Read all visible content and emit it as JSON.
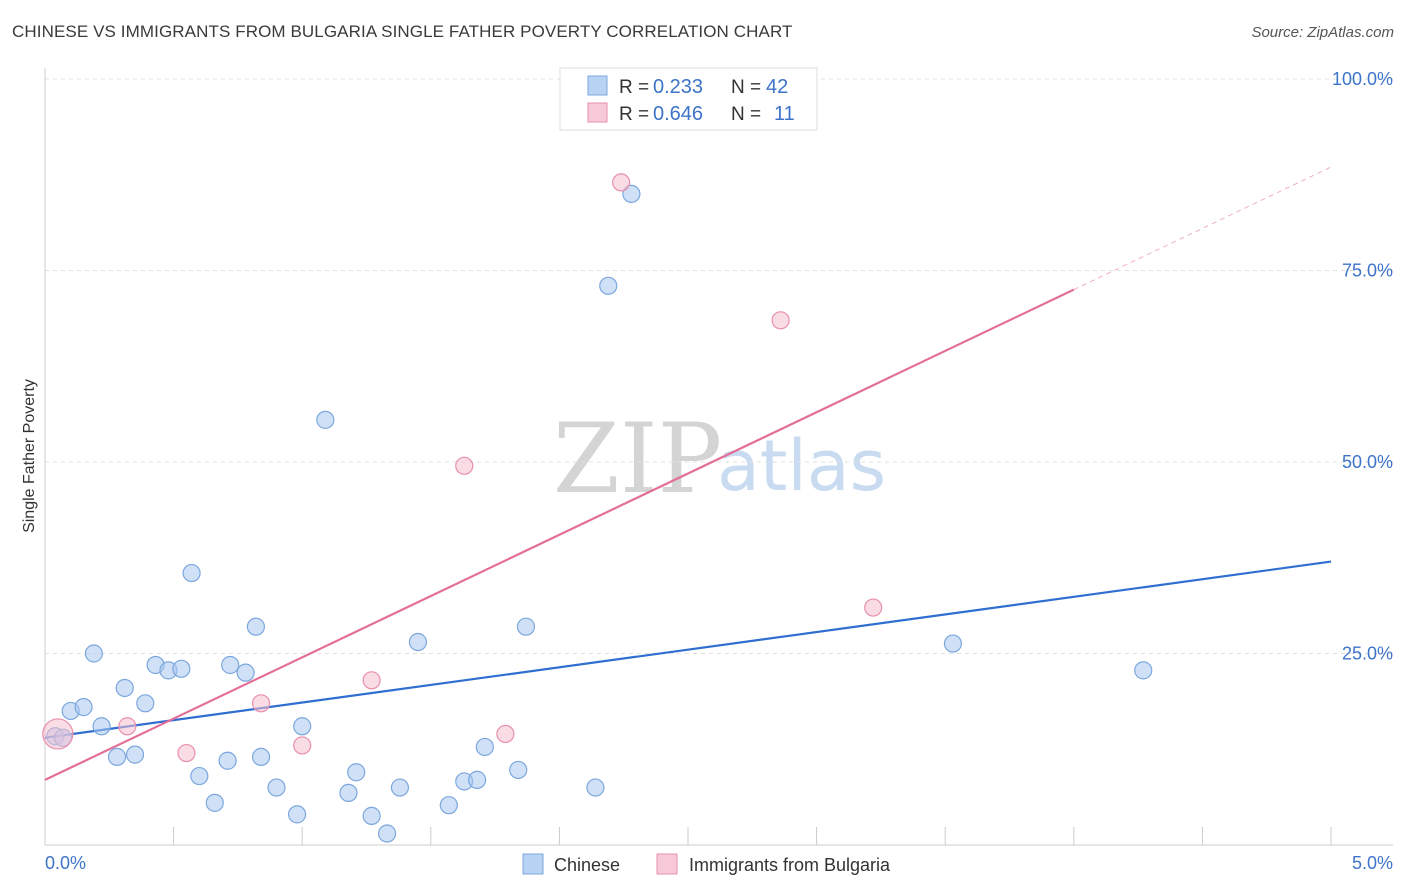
{
  "header": {
    "title": "CHINESE VS IMMIGRANTS FROM BULGARIA SINGLE FATHER POVERTY CORRELATION CHART",
    "source": "Source: ZipAtlas.com"
  },
  "watermark": {
    "zip": "ZIP",
    "atlas": "atlas"
  },
  "chart_data": {
    "type": "scatter",
    "title": "CHINESE VS IMMIGRANTS FROM BULGARIA SINGLE FATHER POVERTY CORRELATION CHART",
    "xlabel": "",
    "ylabel": "Single Father Poverty",
    "xlim": [
      0,
      5
    ],
    "ylim": [
      0,
      100
    ],
    "x_tick_labels": [
      "0.0%",
      "5.0%"
    ],
    "y_ticks": [
      25,
      50,
      75,
      100
    ],
    "y_tick_labels": [
      "25.0%",
      "50.0%",
      "75.0%",
      "100.0%"
    ],
    "grid": true,
    "legend_position": "bottom-center",
    "series": [
      {
        "name": "Chinese",
        "color": "#a9c8f0",
        "edge_color": "#7ba7dd",
        "line_color": "#2f6fd0",
        "R": "0.233",
        "N": "42",
        "trend": {
          "x": [
            0.0,
            5.0
          ],
          "y": [
            14.0,
            37.0
          ]
        },
        "points": [
          {
            "x": 0.04,
            "y": 14.2
          },
          {
            "x": 0.07,
            "y": 14.0
          },
          {
            "x": 0.1,
            "y": 17.5
          },
          {
            "x": 0.15,
            "y": 18.0
          },
          {
            "x": 0.19,
            "y": 25.0
          },
          {
            "x": 0.22,
            "y": 15.5
          },
          {
            "x": 0.28,
            "y": 11.5
          },
          {
            "x": 0.31,
            "y": 20.5
          },
          {
            "x": 0.35,
            "y": 11.8
          },
          {
            "x": 0.39,
            "y": 18.5
          },
          {
            "x": 0.43,
            "y": 23.5
          },
          {
            "x": 0.48,
            "y": 22.8
          },
          {
            "x": 0.53,
            "y": 23.0
          },
          {
            "x": 0.57,
            "y": 35.5
          },
          {
            "x": 0.6,
            "y": 9.0
          },
          {
            "x": 0.66,
            "y": 5.5
          },
          {
            "x": 0.71,
            "y": 11.0
          },
          {
            "x": 0.72,
            "y": 23.5
          },
          {
            "x": 0.78,
            "y": 22.5
          },
          {
            "x": 0.82,
            "y": 28.5
          },
          {
            "x": 0.84,
            "y": 11.5
          },
          {
            "x": 0.9,
            "y": 7.5
          },
          {
            "x": 0.98,
            "y": 4.0
          },
          {
            "x": 1.0,
            "y": 15.5
          },
          {
            "x": 1.09,
            "y": 55.5
          },
          {
            "x": 1.18,
            "y": 6.8
          },
          {
            "x": 1.21,
            "y": 9.5
          },
          {
            "x": 1.27,
            "y": 3.8
          },
          {
            "x": 1.33,
            "y": 1.5
          },
          {
            "x": 1.38,
            "y": 7.5
          },
          {
            "x": 1.45,
            "y": 26.5
          },
          {
            "x": 1.57,
            "y": 5.2
          },
          {
            "x": 1.63,
            "y": 8.3
          },
          {
            "x": 1.68,
            "y": 8.5
          },
          {
            "x": 1.71,
            "y": 12.8
          },
          {
            "x": 1.84,
            "y": 9.8
          },
          {
            "x": 1.87,
            "y": 28.5
          },
          {
            "x": 2.14,
            "y": 7.5
          },
          {
            "x": 2.19,
            "y": 73.0
          },
          {
            "x": 2.28,
            "y": 85.0
          },
          {
            "x": 3.53,
            "y": 26.3
          },
          {
            "x": 4.27,
            "y": 22.8
          }
        ]
      },
      {
        "name": "Immigrants from Bulgaria",
        "color": "#f6bfd0",
        "edge_color": "#e98fac",
        "line_color": "#e36f98",
        "R": "0.646",
        "N": "11",
        "trend": {
          "x": [
            0.0,
            4.0
          ],
          "y": [
            8.5,
            72.5
          ]
        },
        "trend_extension": {
          "x": [
            4.0,
            5.0
          ],
          "y": [
            72.5,
            88.5
          ]
        },
        "points": [
          {
            "x": 0.05,
            "y": 14.5,
            "large": true
          },
          {
            "x": 0.32,
            "y": 15.5
          },
          {
            "x": 0.55,
            "y": 12.0
          },
          {
            "x": 0.84,
            "y": 18.5
          },
          {
            "x": 1.0,
            "y": 13.0
          },
          {
            "x": 1.27,
            "y": 21.5
          },
          {
            "x": 1.63,
            "y": 49.5
          },
          {
            "x": 1.79,
            "y": 14.5
          },
          {
            "x": 2.24,
            "y": 86.5
          },
          {
            "x": 2.86,
            "y": 68.5
          },
          {
            "x": 3.22,
            "y": 31.0
          }
        ]
      }
    ]
  },
  "stats_legend": {
    "r_label": "R =",
    "n_label": "N =",
    "rows": [
      {
        "r": "0.233",
        "n": "42"
      },
      {
        "r": "0.646",
        "n": "11"
      }
    ]
  },
  "legend": {
    "items": [
      {
        "label": "Chinese"
      },
      {
        "label": "Immigrants from Bulgaria"
      }
    ]
  }
}
